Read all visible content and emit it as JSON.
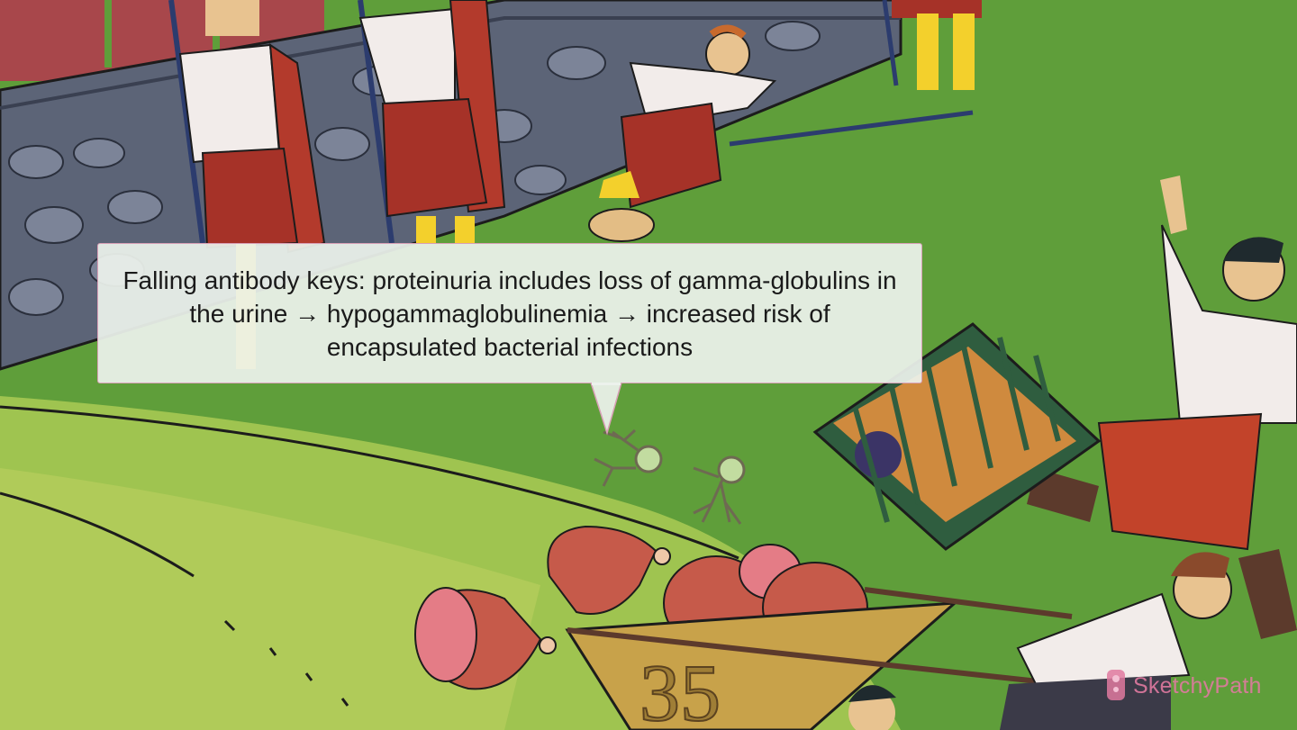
{
  "caption": {
    "text": "Falling antibody keys: proteinuria includes loss of gamma-globulins in the urine → hypogammaglobulinemia → increased risk of encapsulated bacterial infections"
  },
  "brand": {
    "name_part1": "Sketchy",
    "name_part2": "Path",
    "logo_icon": "sketchy-logo-icon"
  },
  "illustration": {
    "cart_number": "35"
  },
  "colors": {
    "grass": "#5f9e3a",
    "callout_border": "#d9a0b7",
    "brand_pink": "#e07aa0"
  }
}
